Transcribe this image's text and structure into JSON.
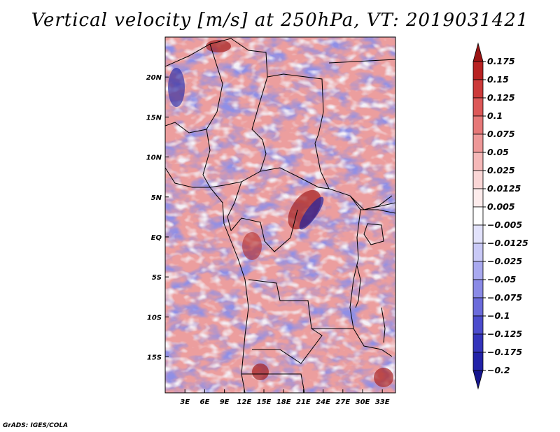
{
  "title": "Vertical velocity [m/s] at 250hPa, VT: 2019031421",
  "footer": "GrADS: IGES/COLA",
  "chart_data": {
    "type": "heatmap",
    "title": "Vertical velocity [m/s] at 250hPa, VT: 2019031421",
    "variable": "Vertical velocity",
    "units": "m/s",
    "level": "250hPa",
    "valid_time": "2019031421",
    "x_ticks": [
      "3E",
      "6E",
      "9E",
      "12E",
      "15E",
      "18E",
      "21E",
      "24E",
      "27E",
      "30E",
      "33E"
    ],
    "x_tick_values": [
      3,
      6,
      9,
      12,
      15,
      18,
      21,
      24,
      27,
      30,
      33
    ],
    "y_ticks": [
      "20N",
      "15N",
      "10N",
      "5N",
      "EQ",
      "5S",
      "10S",
      "15S"
    ],
    "y_tick_values": [
      20,
      15,
      10,
      5,
      0,
      -5,
      -10,
      -15
    ],
    "xlim": [
      0,
      35
    ],
    "ylim": [
      -19.5,
      25
    ],
    "colorbar": {
      "labels": [
        "0.175",
        "0.15",
        "0.125",
        "0.1",
        "0.075",
        "0.05",
        "0.025",
        "0.0125",
        "0.005",
        "−0.005",
        "−0.0125",
        "−0.025",
        "−0.05",
        "−0.075",
        "−0.1",
        "−0.125",
        "−0.175",
        "−0.2"
      ],
      "colors": [
        "#9b1414",
        "#b82222",
        "#cc3a3a",
        "#dc5858",
        "#e67878",
        "#ee9898",
        "#f5b8b8",
        "#fad6d6",
        "#fdecec",
        "#ffffff",
        "#e2e2fb",
        "#c9c9f6",
        "#a9a9ef",
        "#8a8ae6",
        "#6b6bdb",
        "#4c4ccd",
        "#3434bb",
        "#2222a8",
        "#16168f"
      ]
    }
  }
}
